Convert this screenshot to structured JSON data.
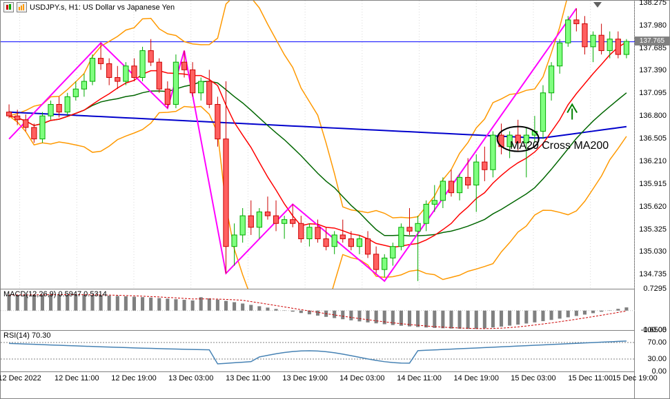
{
  "title": {
    "symbol": "USDJPY.s, H1:",
    "description": "US Dollar vs Japanese Yen"
  },
  "price_chart": {
    "type": "candlestick",
    "background_color": "#ffffff",
    "grid_color": "#d0d0d0",
    "ylim": [
      134.55,
      138.3
    ],
    "yticks": [
      138.275,
      137.98,
      137.685,
      137.39,
      137.095,
      136.8,
      136.505,
      136.21,
      135.915,
      135.62,
      135.325,
      135.03,
      134.735
    ],
    "current_price": 137.765,
    "current_price_bg": "#808080",
    "hline_color": "#0000ff",
    "candle_up_color": "#00aa00",
    "candle_up_fill": "#7fff7f",
    "candle_down_color": "#cc0000",
    "candle_down_fill": "#ff6060",
    "indicators": {
      "bollinger": {
        "color": "#ff9900",
        "width": 1.5
      },
      "ma20": {
        "color": "#ff0000",
        "width": 1.5
      },
      "ma50": {
        "color": "#006600",
        "width": 1.5
      },
      "ma200": {
        "color": "#0000cc",
        "width": 2
      },
      "zigzag": {
        "color": "#ff00ff",
        "width": 2
      }
    },
    "candles": [
      {
        "o": 136.85,
        "h": 136.95,
        "l": 136.77,
        "c": 136.8
      },
      {
        "o": 136.8,
        "h": 136.88,
        "l": 136.68,
        "c": 136.75
      },
      {
        "o": 136.75,
        "h": 136.82,
        "l": 136.6,
        "c": 136.65
      },
      {
        "o": 136.65,
        "h": 136.7,
        "l": 136.45,
        "c": 136.5
      },
      {
        "o": 136.5,
        "h": 136.85,
        "l": 136.45,
        "c": 136.8
      },
      {
        "o": 136.8,
        "h": 137.0,
        "l": 136.75,
        "c": 136.95
      },
      {
        "o": 136.95,
        "h": 137.05,
        "l": 136.78,
        "c": 136.85
      },
      {
        "o": 136.85,
        "h": 137.1,
        "l": 136.8,
        "c": 137.05
      },
      {
        "o": 137.05,
        "h": 137.25,
        "l": 137.0,
        "c": 137.15
      },
      {
        "o": 137.15,
        "h": 137.35,
        "l": 137.05,
        "c": 137.25
      },
      {
        "o": 137.25,
        "h": 137.6,
        "l": 137.2,
        "c": 137.55
      },
      {
        "o": 137.55,
        "h": 137.75,
        "l": 137.4,
        "c": 137.48
      },
      {
        "o": 137.48,
        "h": 137.55,
        "l": 137.2,
        "c": 137.3
      },
      {
        "o": 137.3,
        "h": 137.45,
        "l": 137.15,
        "c": 137.25
      },
      {
        "o": 137.25,
        "h": 137.5,
        "l": 137.2,
        "c": 137.45
      },
      {
        "o": 137.45,
        "h": 137.55,
        "l": 137.25,
        "c": 137.3
      },
      {
        "o": 137.3,
        "h": 137.7,
        "l": 137.25,
        "c": 137.65
      },
      {
        "o": 137.65,
        "h": 137.8,
        "l": 137.45,
        "c": 137.5
      },
      {
        "o": 137.5,
        "h": 137.55,
        "l": 137.1,
        "c": 137.15
      },
      {
        "o": 137.15,
        "h": 137.25,
        "l": 136.9,
        "c": 136.95
      },
      {
        "o": 136.95,
        "h": 137.6,
        "l": 136.9,
        "c": 137.5
      },
      {
        "o": 137.5,
        "h": 137.65,
        "l": 137.3,
        "c": 137.4
      },
      {
        "o": 137.4,
        "h": 137.5,
        "l": 137.05,
        "c": 137.1
      },
      {
        "o": 137.1,
        "h": 137.3,
        "l": 137.0,
        "c": 137.25
      },
      {
        "o": 137.25,
        "h": 137.4,
        "l": 136.9,
        "c": 136.95
      },
      {
        "o": 136.95,
        "h": 137.05,
        "l": 136.4,
        "c": 136.5
      },
      {
        "o": 136.5,
        "h": 137.25,
        "l": 134.75,
        "c": 135.1
      },
      {
        "o": 135.1,
        "h": 135.4,
        "l": 134.85,
        "c": 135.25
      },
      {
        "o": 135.25,
        "h": 135.6,
        "l": 135.15,
        "c": 135.5
      },
      {
        "o": 135.5,
        "h": 135.7,
        "l": 135.25,
        "c": 135.35
      },
      {
        "o": 135.35,
        "h": 135.6,
        "l": 135.2,
        "c": 135.55
      },
      {
        "o": 135.55,
        "h": 135.75,
        "l": 135.45,
        "c": 135.5
      },
      {
        "o": 135.5,
        "h": 135.7,
        "l": 135.3,
        "c": 135.4
      },
      {
        "o": 135.4,
        "h": 135.5,
        "l": 135.2,
        "c": 135.45
      },
      {
        "o": 135.45,
        "h": 135.65,
        "l": 135.35,
        "c": 135.4
      },
      {
        "o": 135.4,
        "h": 135.5,
        "l": 135.15,
        "c": 135.2
      },
      {
        "o": 135.2,
        "h": 135.4,
        "l": 135.1,
        "c": 135.35
      },
      {
        "o": 135.35,
        "h": 135.45,
        "l": 135.15,
        "c": 135.2
      },
      {
        "o": 135.2,
        "h": 135.35,
        "l": 135.05,
        "c": 135.1
      },
      {
        "o": 135.1,
        "h": 135.3,
        "l": 135.0,
        "c": 135.25
      },
      {
        "o": 135.25,
        "h": 135.45,
        "l": 135.15,
        "c": 135.2
      },
      {
        "o": 135.2,
        "h": 135.3,
        "l": 135.05,
        "c": 135.1
      },
      {
        "o": 135.1,
        "h": 135.25,
        "l": 135.0,
        "c": 135.2
      },
      {
        "o": 135.2,
        "h": 135.3,
        "l": 134.95,
        "c": 135.0
      },
      {
        "o": 135.0,
        "h": 135.1,
        "l": 134.75,
        "c": 134.8
      },
      {
        "o": 134.8,
        "h": 135.0,
        "l": 134.7,
        "c": 134.95
      },
      {
        "o": 134.95,
        "h": 135.15,
        "l": 134.85,
        "c": 135.1
      },
      {
        "o": 135.1,
        "h": 135.4,
        "l": 135.05,
        "c": 135.35
      },
      {
        "o": 135.35,
        "h": 135.6,
        "l": 135.25,
        "c": 135.3
      },
      {
        "o": 135.3,
        "h": 135.5,
        "l": 134.65,
        "c": 135.4
      },
      {
        "o": 135.4,
        "h": 135.7,
        "l": 135.3,
        "c": 135.65
      },
      {
        "o": 135.65,
        "h": 135.9,
        "l": 135.55,
        "c": 135.7
      },
      {
        "o": 135.7,
        "h": 136.0,
        "l": 135.6,
        "c": 135.95
      },
      {
        "o": 135.95,
        "h": 136.1,
        "l": 135.75,
        "c": 135.8
      },
      {
        "o": 135.8,
        "h": 136.05,
        "l": 135.7,
        "c": 136.0
      },
      {
        "o": 136.0,
        "h": 136.25,
        "l": 135.85,
        "c": 135.9
      },
      {
        "o": 135.9,
        "h": 136.3,
        "l": 135.55,
        "c": 136.2
      },
      {
        "o": 136.2,
        "h": 136.4,
        "l": 135.95,
        "c": 136.1
      },
      {
        "o": 136.1,
        "h": 136.6,
        "l": 136.0,
        "c": 136.55
      },
      {
        "o": 136.55,
        "h": 136.7,
        "l": 136.3,
        "c": 136.4
      },
      {
        "o": 136.4,
        "h": 136.6,
        "l": 136.25,
        "c": 136.55
      },
      {
        "o": 136.55,
        "h": 136.75,
        "l": 136.35,
        "c": 136.45
      },
      {
        "o": 136.45,
        "h": 136.65,
        "l": 136.0,
        "c": 136.55
      },
      {
        "o": 136.55,
        "h": 136.8,
        "l": 136.45,
        "c": 136.6
      },
      {
        "o": 136.6,
        "h": 137.2,
        "l": 136.5,
        "c": 137.1
      },
      {
        "o": 137.1,
        "h": 137.5,
        "l": 137.0,
        "c": 137.45
      },
      {
        "o": 137.45,
        "h": 137.8,
        "l": 137.35,
        "c": 137.75
      },
      {
        "o": 137.75,
        "h": 138.1,
        "l": 137.7,
        "c": 138.05
      },
      {
        "o": 138.05,
        "h": 138.2,
        "l": 137.9,
        "c": 138.0
      },
      {
        "o": 138.0,
        "h": 138.1,
        "l": 137.6,
        "c": 137.7
      },
      {
        "o": 137.7,
        "h": 137.9,
        "l": 137.5,
        "c": 137.85
      },
      {
        "o": 137.85,
        "h": 138.0,
        "l": 137.6,
        "c": 137.65
      },
      {
        "o": 137.65,
        "h": 137.9,
        "l": 137.55,
        "c": 137.8
      },
      {
        "o": 137.8,
        "h": 137.9,
        "l": 137.55,
        "c": 137.6
      },
      {
        "o": 137.6,
        "h": 137.8,
        "l": 137.55,
        "c": 137.77
      }
    ],
    "annotation": {
      "text": "MA20 Cross MA200",
      "text_color": "#000000",
      "text_fontsize": 16,
      "ellipse_color": "#000000",
      "arrow_color": "#008000"
    }
  },
  "macd": {
    "type": "macd",
    "label": "MACD(12,26,9) 0.5947 0.5314",
    "signal_color": "#cc0000",
    "hist_color": "#808080",
    "ylim": [
      -0.6505,
      0.7295
    ],
    "yticks": [
      0.7295,
      -0.6505
    ]
  },
  "rsi": {
    "type": "rsi",
    "label": "RSI(14) 70.30",
    "line_color": "#4682b4",
    "level_color": "#808080",
    "ylim": [
      0,
      100
    ],
    "yticks": [
      100.0,
      70.0,
      30.0,
      0.0
    ],
    "levels": [
      30,
      70
    ]
  },
  "xaxis": {
    "labels": [
      "12 Dec 2022",
      "12 Dec 11:00",
      "12 Dec 19:00",
      "13 Dec 03:00",
      "13 Dec 11:00",
      "13 Dec 19:00",
      "14 Dec 03:00",
      "14 Dec 11:00",
      "14 Dec 19:00",
      "15 Dec 03:00",
      "15 Dec 11:00",
      "15 Dec 19:00"
    ],
    "positions_pct": [
      3,
      12,
      21,
      30,
      39,
      48,
      57,
      66,
      75,
      84,
      93,
      100
    ]
  }
}
